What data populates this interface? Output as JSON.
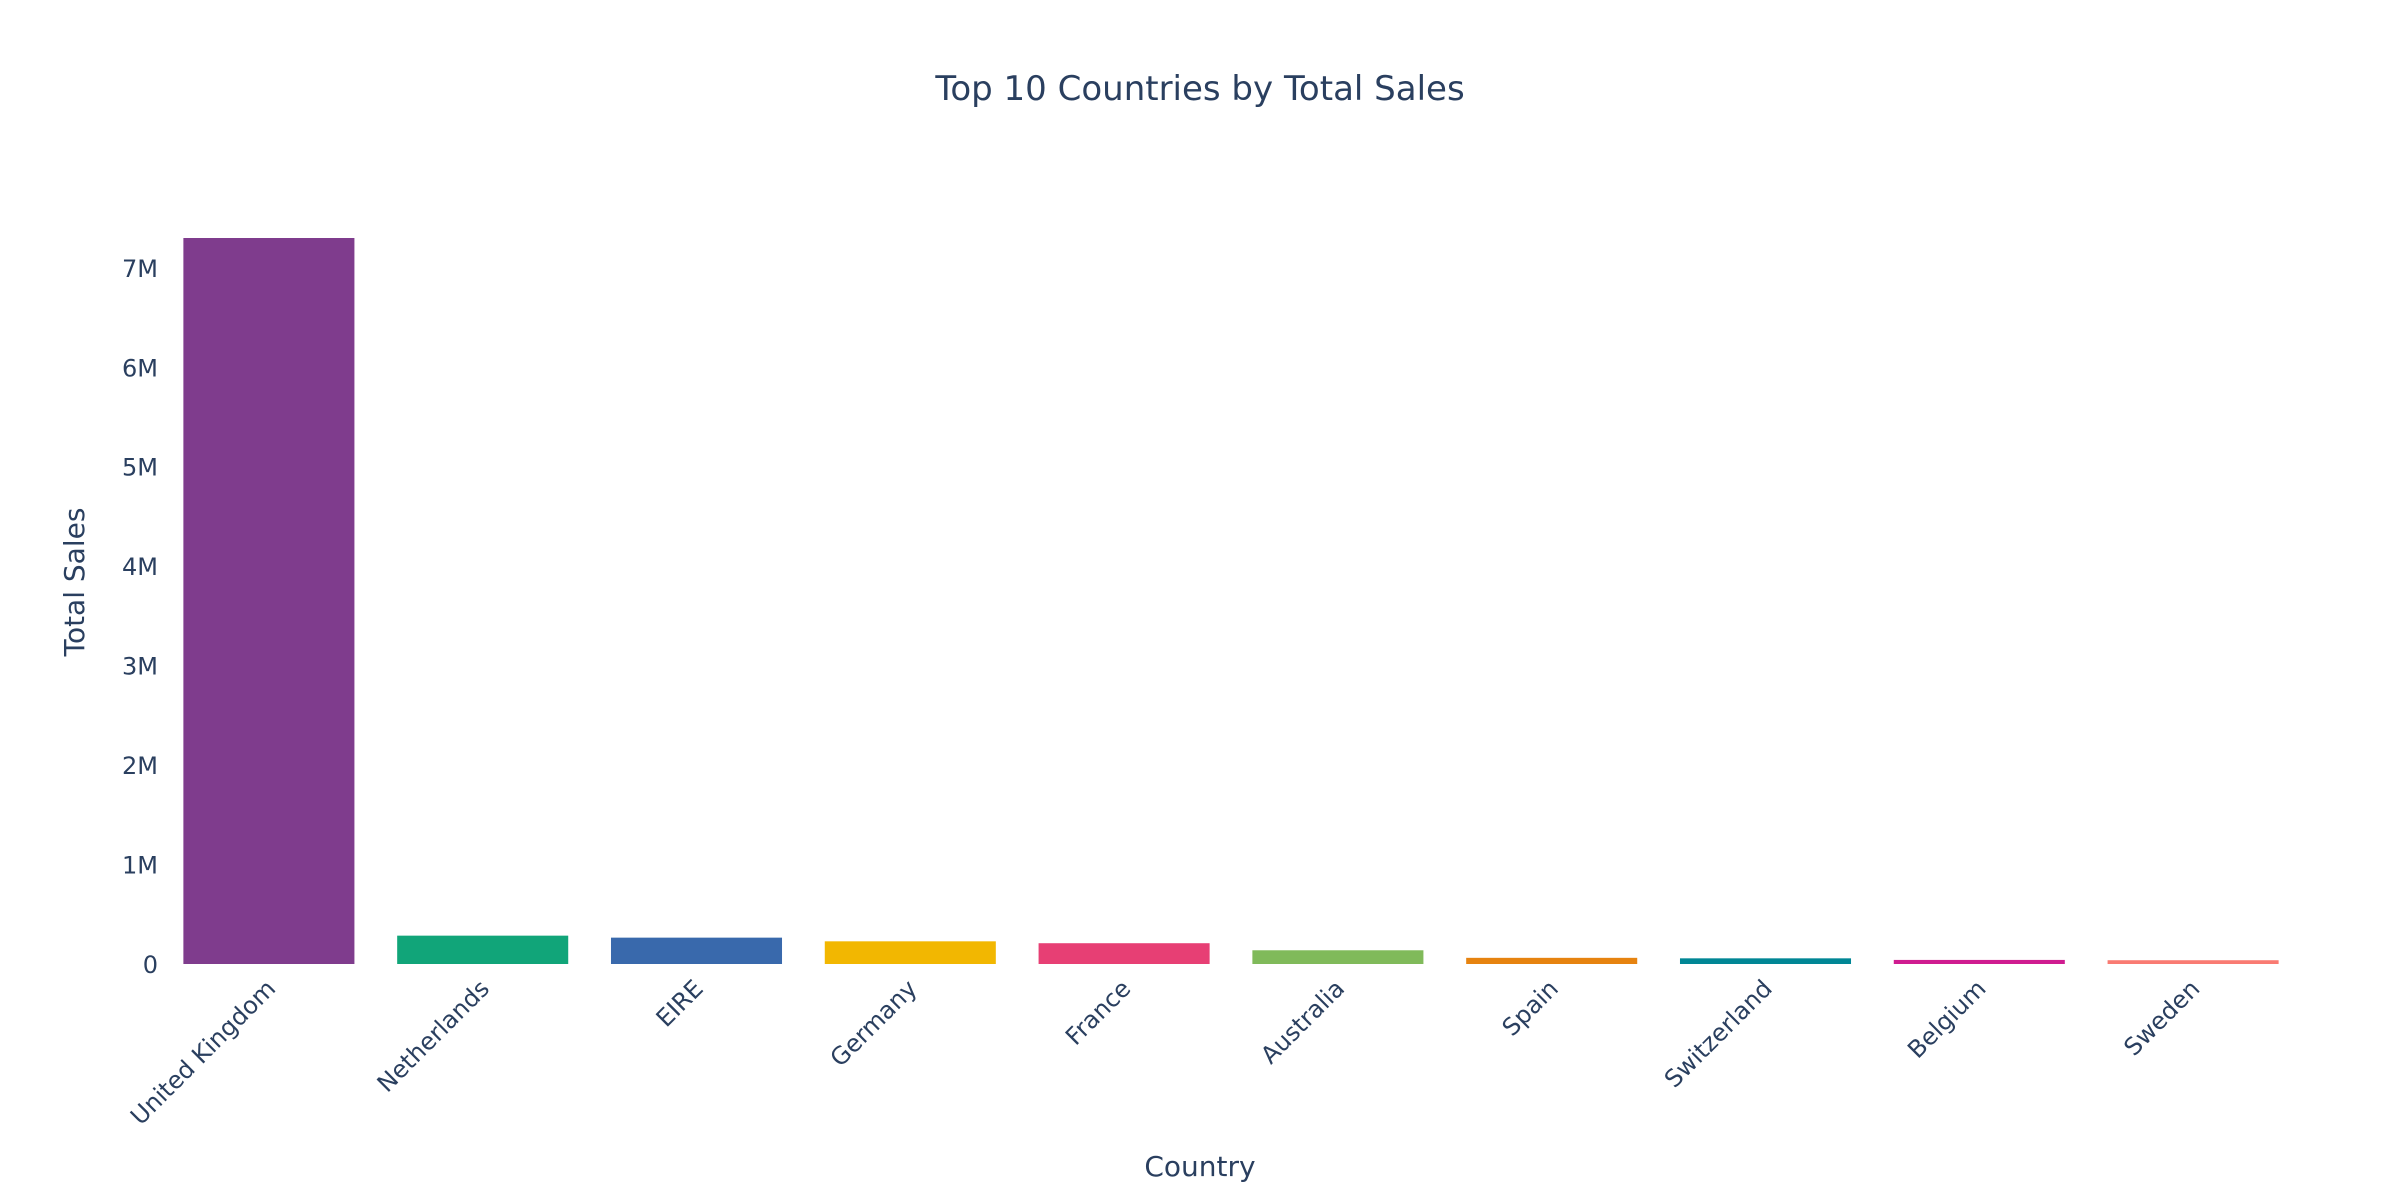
{
  "chart_data": {
    "type": "bar",
    "title": "Top 10 Countries by Total Sales",
    "xlabel": "Country",
    "ylabel": "Total Sales",
    "categories": [
      "United Kingdom",
      "Netherlands",
      "EIRE",
      "Germany",
      "France",
      "Australia",
      "Spain",
      "Switzerland",
      "Belgium",
      "Sweden"
    ],
    "values": [
      7300000,
      285000,
      265000,
      228000,
      209000,
      138000,
      62000,
      57000,
      41000,
      38000
    ],
    "colors": [
      "#7F3C8D",
      "#11A579",
      "#3969AC",
      "#F2B701",
      "#E73F74",
      "#80BA5A",
      "#E68310",
      "#008695",
      "#CF1C90",
      "#F97B72"
    ],
    "ylim": [
      0,
      7300000
    ],
    "yticks": [
      0,
      1000000,
      2000000,
      3000000,
      4000000,
      5000000,
      6000000,
      7000000
    ],
    "ytick_labels": [
      "0",
      "1M",
      "2M",
      "3M",
      "4M",
      "5M",
      "6M",
      "7M"
    ],
    "grid": false,
    "legend": "none"
  }
}
